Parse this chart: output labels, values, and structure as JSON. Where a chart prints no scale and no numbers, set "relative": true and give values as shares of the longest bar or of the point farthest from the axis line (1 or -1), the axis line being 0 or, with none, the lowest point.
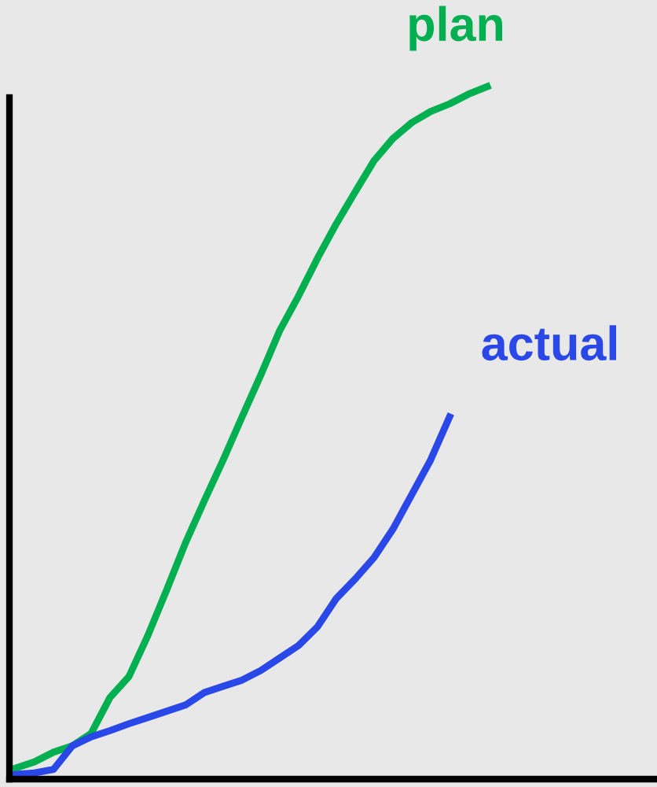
{
  "chart_data": {
    "type": "line",
    "relative": true,
    "marker": "none",
    "line_style": "solid",
    "categories": [
      null,
      null,
      null,
      null,
      null,
      null,
      null,
      null,
      null,
      null,
      null,
      null,
      null,
      null,
      null,
      null,
      null,
      null,
      null,
      null,
      null,
      null,
      null,
      null,
      null,
      null
    ],
    "series": [
      {
        "name": "plan",
        "color": "#00b050",
        "values": [
          0.016,
          0.025,
          0.039,
          0.048,
          0.066,
          0.118,
          0.148,
          0.207,
          0.273,
          0.341,
          0.402,
          0.461,
          0.523,
          0.584,
          0.648,
          0.698,
          0.752,
          0.802,
          0.848,
          0.893,
          0.925,
          0.948,
          0.964,
          0.975,
          0.989,
          1
        ]
      },
      {
        "name": "actual",
        "color": "#2a47e8",
        "values": [
          0.007,
          0.009,
          0.014,
          0.048,
          0.061,
          0.07,
          0.08,
          0.089,
          0.098,
          0.107,
          0.125,
          0.134,
          0.143,
          0.157,
          0.175,
          0.193,
          0.22,
          0.261,
          0.289,
          0.32,
          0.361,
          0.411,
          0.461,
          0.523,
          null,
          null
        ]
      }
    ]
  }
}
